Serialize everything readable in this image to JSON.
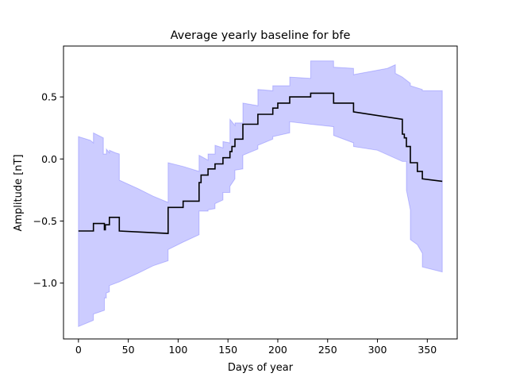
{
  "chart_data": {
    "type": "line",
    "title": "Average yearly baseline for bfe",
    "xlabel": "Days of year",
    "ylabel": "Amplitude [nT]",
    "xlim": [
      -15,
      380
    ],
    "ylim": [
      -1.45,
      0.91
    ],
    "x_ticks": [
      0,
      50,
      100,
      150,
      200,
      250,
      300,
      350
    ],
    "x_tick_labels": [
      "0",
      "50",
      "100",
      "150",
      "200",
      "250",
      "300",
      "350"
    ],
    "y_ticks": [
      -1.0,
      -0.5,
      0.0,
      0.5
    ],
    "y_tick_labels": [
      "−1.0",
      "−0.5",
      "0.0",
      "0.5"
    ],
    "grid": false,
    "series": [
      {
        "role": "mean",
        "color": "#000000",
        "points": [
          [
            0,
            -0.58
          ],
          [
            15,
            -0.58
          ],
          [
            15,
            -0.52
          ],
          [
            26,
            -0.52
          ],
          [
            26,
            -0.57
          ],
          [
            27,
            -0.57
          ],
          [
            27,
            -0.53
          ],
          [
            31,
            -0.53
          ],
          [
            31,
            -0.47
          ],
          [
            41,
            -0.47
          ],
          [
            41,
            -0.58
          ],
          [
            90,
            -0.6
          ],
          [
            90,
            -0.39
          ],
          [
            105,
            -0.39
          ],
          [
            105,
            -0.34
          ],
          [
            121,
            -0.34
          ],
          [
            121,
            -0.19
          ],
          [
            123,
            -0.19
          ],
          [
            123,
            -0.13
          ],
          [
            130,
            -0.13
          ],
          [
            130,
            -0.08
          ],
          [
            137,
            -0.08
          ],
          [
            137,
            -0.04
          ],
          [
            145,
            -0.04
          ],
          [
            145,
            0.01
          ],
          [
            152,
            0.01
          ],
          [
            152,
            0.06
          ],
          [
            154,
            0.06
          ],
          [
            154,
            0.1
          ],
          [
            157,
            0.1
          ],
          [
            157,
            0.16
          ],
          [
            165,
            0.16
          ],
          [
            165,
            0.28
          ],
          [
            180,
            0.28
          ],
          [
            180,
            0.36
          ],
          [
            195,
            0.36
          ],
          [
            195,
            0.41
          ],
          [
            200,
            0.41
          ],
          [
            200,
            0.45
          ],
          [
            212,
            0.45
          ],
          [
            212,
            0.5
          ],
          [
            233,
            0.5
          ],
          [
            233,
            0.53
          ],
          [
            256,
            0.53
          ],
          [
            256,
            0.45
          ],
          [
            276,
            0.45
          ],
          [
            276,
            0.38
          ],
          [
            325,
            0.32
          ],
          [
            325,
            0.2
          ],
          [
            327,
            0.2
          ],
          [
            327,
            0.17
          ],
          [
            329,
            0.17
          ],
          [
            329,
            0.1
          ],
          [
            333,
            0.1
          ],
          [
            333,
            -0.03
          ],
          [
            340,
            -0.03
          ],
          [
            340,
            -0.1
          ],
          [
            345,
            -0.1
          ],
          [
            345,
            -0.16
          ],
          [
            365,
            -0.18
          ]
        ]
      },
      {
        "role": "band",
        "color": "#0000ff",
        "upper": [
          [
            0,
            0.18
          ],
          [
            12,
            0.15
          ],
          [
            15,
            0.13
          ],
          [
            15,
            0.21
          ],
          [
            25,
            0.17
          ],
          [
            25,
            0.04
          ],
          [
            28,
            0.04
          ],
          [
            28,
            0.08
          ],
          [
            31,
            0.05
          ],
          [
            31,
            0.07
          ],
          [
            37,
            0.05
          ],
          [
            41,
            0.04
          ],
          [
            41,
            -0.17
          ],
          [
            60,
            -0.24
          ],
          [
            75,
            -0.3
          ],
          [
            90,
            -0.35
          ],
          [
            90,
            -0.03
          ],
          [
            105,
            -0.06
          ],
          [
            121,
            -0.1
          ],
          [
            121,
            0.03
          ],
          [
            130,
            -0.01
          ],
          [
            130,
            0.04
          ],
          [
            137,
            0.04
          ],
          [
            137,
            0.11
          ],
          [
            145,
            0.09
          ],
          [
            145,
            0.14
          ],
          [
            152,
            0.13
          ],
          [
            152,
            0.32
          ],
          [
            157,
            0.27
          ],
          [
            157,
            0.29
          ],
          [
            165,
            0.29
          ],
          [
            165,
            0.45
          ],
          [
            180,
            0.43
          ],
          [
            180,
            0.56
          ],
          [
            195,
            0.55
          ],
          [
            195,
            0.59
          ],
          [
            212,
            0.59
          ],
          [
            212,
            0.66
          ],
          [
            233,
            0.65
          ],
          [
            233,
            0.79
          ],
          [
            256,
            0.79
          ],
          [
            256,
            0.74
          ],
          [
            276,
            0.73
          ],
          [
            276,
            0.68
          ],
          [
            310,
            0.73
          ],
          [
            318,
            0.76
          ],
          [
            318,
            0.69
          ],
          [
            325,
            0.66
          ],
          [
            333,
            0.61
          ],
          [
            333,
            0.59
          ],
          [
            345,
            0.56
          ],
          [
            345,
            0.55
          ],
          [
            365,
            0.55
          ]
        ],
        "lower": [
          [
            0,
            -1.35
          ],
          [
            15,
            -1.3
          ],
          [
            15,
            -1.25
          ],
          [
            26,
            -1.22
          ],
          [
            26,
            -1.12
          ],
          [
            28,
            -1.12
          ],
          [
            28,
            -1.08
          ],
          [
            31,
            -1.07
          ],
          [
            31,
            -1.02
          ],
          [
            41,
            -0.99
          ],
          [
            60,
            -0.92
          ],
          [
            75,
            -0.86
          ],
          [
            90,
            -0.82
          ],
          [
            90,
            -0.73
          ],
          [
            105,
            -0.67
          ],
          [
            121,
            -0.61
          ],
          [
            121,
            -0.42
          ],
          [
            130,
            -0.42
          ],
          [
            130,
            -0.41
          ],
          [
            137,
            -0.4
          ],
          [
            137,
            -0.36
          ],
          [
            145,
            -0.33
          ],
          [
            145,
            -0.27
          ],
          [
            152,
            -0.27
          ],
          [
            152,
            -0.22
          ],
          [
            157,
            -0.16
          ],
          [
            157,
            -0.09
          ],
          [
            165,
            -0.08
          ],
          [
            165,
            0.03
          ],
          [
            180,
            0.08
          ],
          [
            180,
            0.11
          ],
          [
            195,
            0.16
          ],
          [
            195,
            0.18
          ],
          [
            212,
            0.21
          ],
          [
            212,
            0.3
          ],
          [
            233,
            0.28
          ],
          [
            256,
            0.26
          ],
          [
            256,
            0.19
          ],
          [
            276,
            0.13
          ],
          [
            276,
            0.1
          ],
          [
            300,
            0.07
          ],
          [
            325,
            -0.02
          ],
          [
            329,
            -0.02
          ],
          [
            329,
            -0.25
          ],
          [
            333,
            -0.41
          ],
          [
            333,
            -0.65
          ],
          [
            340,
            -0.69
          ],
          [
            345,
            -0.76
          ],
          [
            345,
            -0.87
          ],
          [
            365,
            -0.91
          ]
        ]
      }
    ]
  }
}
